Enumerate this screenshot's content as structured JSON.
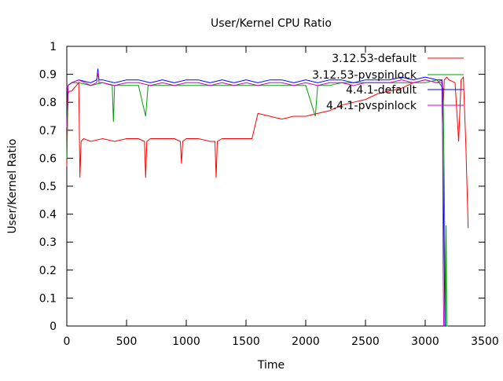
{
  "chart_data": {
    "type": "line",
    "title": "User/Kernel CPU Ratio",
    "xlabel": "Time",
    "ylabel": "User/Kernel Ratio",
    "xlim": [
      0,
      3500
    ],
    "ylim": [
      0,
      1
    ],
    "xticks": [
      0,
      500,
      1000,
      1500,
      2000,
      2500,
      3000,
      3500
    ],
    "yticks": [
      0,
      0.1,
      0.2,
      0.3,
      0.4,
      0.5,
      0.6,
      0.7,
      0.8,
      0.9,
      1
    ],
    "grid": false,
    "legend_position": "top-right",
    "series": [
      {
        "name": "3.12.53-default",
        "color": "#ff0000",
        "x": [
          0,
          10,
          20,
          40,
          60,
          80,
          100,
          110,
          120,
          140,
          200,
          300,
          400,
          500,
          600,
          650,
          660,
          670,
          700,
          800,
          900,
          950,
          960,
          970,
          1000,
          1100,
          1200,
          1240,
          1250,
          1260,
          1300,
          1400,
          1500,
          1550,
          1600,
          1700,
          1800,
          1900,
          2000,
          2100,
          2200,
          2300,
          2400,
          2500,
          2600,
          2700,
          2800,
          2900,
          3000,
          3100,
          3140,
          3145,
          3160,
          3180,
          3200,
          3250,
          3280,
          3300,
          3320,
          3340,
          3360
        ],
        "y": [
          0.57,
          0.83,
          0.84,
          0.84,
          0.85,
          0.86,
          0.87,
          0.53,
          0.66,
          0.67,
          0.66,
          0.67,
          0.66,
          0.67,
          0.67,
          0.66,
          0.53,
          0.66,
          0.67,
          0.67,
          0.67,
          0.66,
          0.58,
          0.66,
          0.67,
          0.67,
          0.66,
          0.66,
          0.53,
          0.66,
          0.67,
          0.67,
          0.67,
          0.67,
          0.76,
          0.75,
          0.74,
          0.75,
          0.75,
          0.76,
          0.77,
          0.79,
          0.8,
          0.81,
          0.83,
          0.84,
          0.85,
          0.87,
          0.88,
          0.87,
          0.88,
          0.72,
          0.88,
          0.89,
          0.88,
          0.87,
          0.66,
          0.88,
          0.89,
          0.65,
          0.35
        ]
      },
      {
        "name": "3.12.53-pvspinlock",
        "color": "#00a000",
        "x": [
          0,
          10,
          40,
          100,
          200,
          300,
          380,
          390,
          400,
          500,
          600,
          660,
          680,
          700,
          800,
          900,
          1000,
          1100,
          1200,
          1300,
          1400,
          1500,
          1600,
          1700,
          1800,
          1900,
          2000,
          2080,
          2100,
          2200,
          2300,
          2400,
          2500,
          2600,
          2700,
          2800,
          2900,
          3000,
          3100,
          3150,
          3160,
          3170,
          3175,
          3180,
          3190
        ],
        "y": [
          0.6,
          0.86,
          0.87,
          0.87,
          0.86,
          0.87,
          0.86,
          0.73,
          0.86,
          0.86,
          0.86,
          0.75,
          0.86,
          0.86,
          0.86,
          0.86,
          0.86,
          0.86,
          0.86,
          0.86,
          0.86,
          0.86,
          0.86,
          0.86,
          0.86,
          0.86,
          0.86,
          0.75,
          0.86,
          0.86,
          0.87,
          0.87,
          0.87,
          0.87,
          0.87,
          0.87,
          0.87,
          0.87,
          0.88,
          0.85,
          0.5,
          0.0,
          0.36,
          0.0,
          0.0
        ]
      },
      {
        "name": "4.4.1-default",
        "color": "#0000ff",
        "x": [
          0,
          10,
          40,
          100,
          200,
          250,
          260,
          270,
          300,
          400,
          500,
          600,
          700,
          800,
          900,
          1000,
          1100,
          1200,
          1300,
          1400,
          1500,
          1600,
          1700,
          1800,
          1900,
          2000,
          2100,
          2200,
          2300,
          2400,
          2500,
          2600,
          2700,
          2800,
          2900,
          3000,
          3100,
          3140,
          3150,
          3160,
          3165
        ],
        "y": [
          0.71,
          0.86,
          0.87,
          0.88,
          0.87,
          0.88,
          0.92,
          0.88,
          0.88,
          0.87,
          0.88,
          0.88,
          0.87,
          0.88,
          0.87,
          0.88,
          0.88,
          0.87,
          0.88,
          0.87,
          0.88,
          0.87,
          0.88,
          0.88,
          0.87,
          0.88,
          0.87,
          0.88,
          0.88,
          0.87,
          0.88,
          0.88,
          0.88,
          0.89,
          0.88,
          0.89,
          0.88,
          0.88,
          0.55,
          0.2,
          0.0
        ]
      },
      {
        "name": "4.4.1-pvspinlock",
        "color": "#cc00cc",
        "x": [
          0,
          10,
          40,
          100,
          200,
          250,
          260,
          270,
          300,
          400,
          500,
          600,
          700,
          800,
          900,
          1000,
          1100,
          1200,
          1300,
          1400,
          1500,
          1600,
          1700,
          1800,
          1900,
          2000,
          2100,
          2200,
          2300,
          2400,
          2500,
          2600,
          2700,
          2800,
          2900,
          3000,
          3100,
          3145,
          3150,
          3155
        ],
        "y": [
          0.71,
          0.86,
          0.87,
          0.88,
          0.86,
          0.87,
          0.91,
          0.87,
          0.87,
          0.86,
          0.87,
          0.87,
          0.86,
          0.87,
          0.86,
          0.87,
          0.87,
          0.86,
          0.87,
          0.86,
          0.87,
          0.86,
          0.87,
          0.87,
          0.86,
          0.87,
          0.86,
          0.87,
          0.87,
          0.86,
          0.87,
          0.87,
          0.87,
          0.88,
          0.87,
          0.88,
          0.87,
          0.87,
          0.2,
          0.0
        ]
      }
    ]
  }
}
